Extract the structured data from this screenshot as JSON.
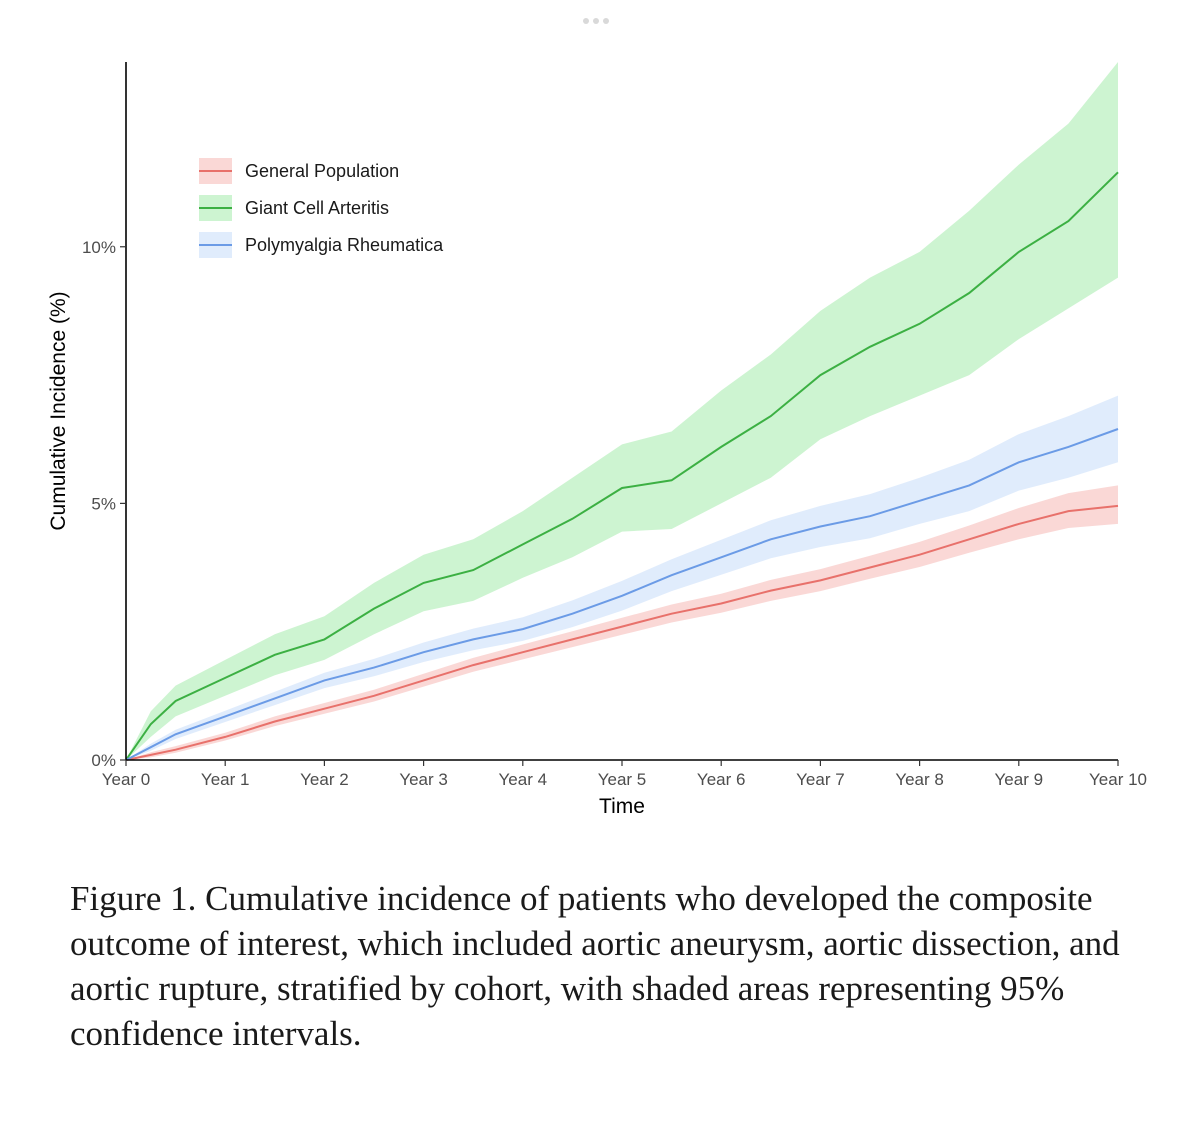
{
  "chart_data": {
    "type": "line",
    "xlabel": "Time",
    "ylabel": "Cumulative Incidence (%)",
    "x_tick_labels": [
      "Year 0",
      "Year 1",
      "Year 2",
      "Year 3",
      "Year 4",
      "Year 5",
      "Year 6",
      "Year 7",
      "Year 8",
      "Year 9",
      "Year 10"
    ],
    "y_tick_labels": [
      "0%",
      "5%",
      "10%"
    ],
    "y_ticks": [
      0,
      5,
      10
    ],
    "xlim": [
      0,
      10
    ],
    "ylim": [
      0,
      13.6
    ],
    "grid": false,
    "legend_position": "top-left",
    "x": [
      0,
      0.25,
      0.5,
      1,
      1.5,
      2,
      2.5,
      3,
      3.5,
      4,
      4.5,
      5,
      5.5,
      6,
      6.5,
      7,
      7.5,
      8,
      8.5,
      9,
      9.5,
      10
    ],
    "series": [
      {
        "name": "General Population",
        "color": "#e8716b",
        "band_color": "#f8c7c4",
        "values": [
          0,
          0.1,
          0.2,
          0.45,
          0.75,
          1.0,
          1.25,
          1.55,
          1.85,
          2.1,
          2.35,
          2.6,
          2.85,
          3.05,
          3.3,
          3.5,
          3.75,
          4.0,
          4.3,
          4.6,
          4.85,
          4.95
        ],
        "lower": [
          0,
          0.05,
          0.14,
          0.38,
          0.66,
          0.9,
          1.14,
          1.43,
          1.72,
          1.96,
          2.2,
          2.44,
          2.68,
          2.87,
          3.1,
          3.29,
          3.53,
          3.76,
          4.04,
          4.3,
          4.52,
          4.6
        ],
        "upper": [
          0,
          0.15,
          0.27,
          0.53,
          0.85,
          1.11,
          1.37,
          1.68,
          1.99,
          2.25,
          2.51,
          2.77,
          3.03,
          3.24,
          3.51,
          3.72,
          3.98,
          4.25,
          4.57,
          4.91,
          5.2,
          5.35
        ]
      },
      {
        "name": "Giant Cell Arteritis",
        "color": "#3cb043",
        "band_color": "#b8efbe",
        "values": [
          0,
          0.7,
          1.15,
          1.6,
          2.05,
          2.35,
          2.95,
          3.45,
          3.7,
          4.2,
          4.7,
          5.3,
          5.45,
          6.1,
          6.7,
          7.5,
          8.05,
          8.5,
          9.1,
          9.9,
          10.5,
          11.45
        ],
        "lower": [
          0,
          0.45,
          0.85,
          1.25,
          1.65,
          1.95,
          2.45,
          2.9,
          3.1,
          3.55,
          3.95,
          4.45,
          4.5,
          5.0,
          5.5,
          6.25,
          6.7,
          7.1,
          7.5,
          8.2,
          8.8,
          9.4
        ],
        "upper": [
          0,
          0.95,
          1.45,
          1.95,
          2.45,
          2.8,
          3.45,
          4.0,
          4.3,
          4.85,
          5.5,
          6.15,
          6.4,
          7.2,
          7.9,
          8.75,
          9.4,
          9.9,
          10.7,
          11.6,
          12.4,
          13.6
        ]
      },
      {
        "name": "Polymyalgia Rheumatica",
        "color": "#6b9be6",
        "band_color": "#d3e4fb",
        "values": [
          0,
          0.25,
          0.5,
          0.85,
          1.2,
          1.55,
          1.8,
          2.1,
          2.35,
          2.55,
          2.85,
          3.2,
          3.6,
          3.95,
          4.3,
          4.55,
          4.75,
          5.05,
          5.35,
          5.8,
          6.1,
          6.45
        ],
        "lower": [
          0,
          0.18,
          0.41,
          0.74,
          1.07,
          1.4,
          1.63,
          1.91,
          2.14,
          2.32,
          2.59,
          2.91,
          3.29,
          3.61,
          3.93,
          4.15,
          4.32,
          4.6,
          4.85,
          5.25,
          5.5,
          5.8
        ],
        "upper": [
          0,
          0.32,
          0.59,
          0.96,
          1.33,
          1.7,
          1.97,
          2.29,
          2.56,
          2.78,
          3.11,
          3.49,
          3.91,
          4.29,
          4.67,
          4.95,
          5.18,
          5.5,
          5.85,
          6.35,
          6.7,
          7.1
        ]
      }
    ]
  },
  "caption": "Figure 1. Cumulative incidence of patients who developed the composite outcome of interest, which included aortic aneurysm, aortic dissection, and aortic rupture, stratified by cohort, with shaded areas representing 95% confidence intervals."
}
